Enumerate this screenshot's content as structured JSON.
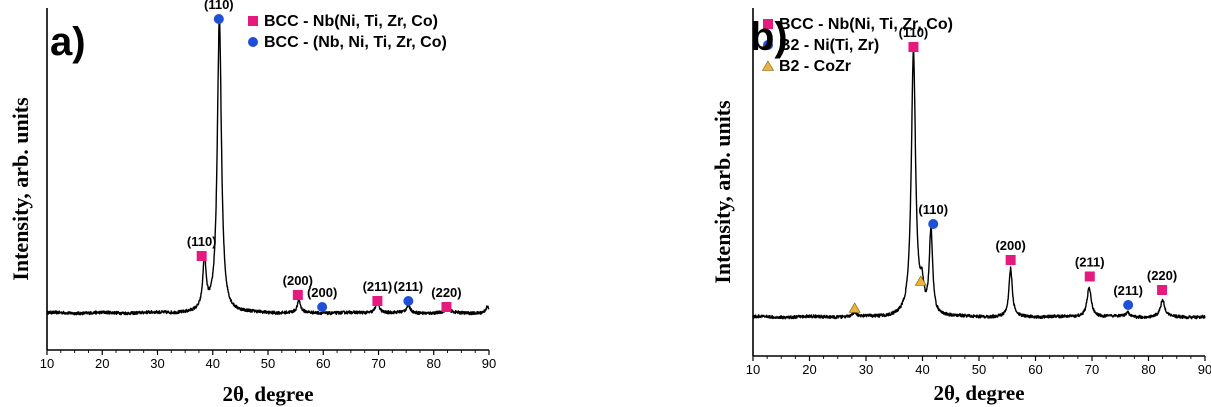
{
  "chart_data": [
    {
      "type": "line",
      "panel_label": "a)",
      "xlabel": "2θ, degree",
      "ylabel": "Intensity, arb. units",
      "title": "",
      "xlim": [
        10,
        90
      ],
      "xticks": [
        10,
        20,
        30,
        40,
        50,
        60,
        70,
        80,
        90
      ],
      "baseline": 2.5,
      "grid": false,
      "legend_position": "top-right",
      "legend": [
        {
          "marker": "square",
          "color": "#e6197f",
          "label": "BCC - Nb(Ni, Ti, Zr, Co)"
        },
        {
          "marker": "circle",
          "color": "#1f4fd6",
          "label": "BCC - (Nb, Ni, Ti, Zr, Co)"
        }
      ],
      "peaks": [
        {
          "x": 38.5,
          "h": 17,
          "w": 0.35
        },
        {
          "x": 41.2,
          "h": 98,
          "w": 0.45
        },
        {
          "x": 55.6,
          "h": 4,
          "w": 0.35
        },
        {
          "x": 69.8,
          "h": 4,
          "w": 0.4
        },
        {
          "x": 75.4,
          "h": 2.5,
          "w": 0.4
        },
        {
          "x": 82.5,
          "h": 2,
          "w": 0.4
        },
        {
          "x": 89.7,
          "h": 2,
          "w": 0.4
        }
      ],
      "annotations": [
        {
          "label": "(110)",
          "x": 41.1,
          "marker": "circle",
          "color": "#1f4fd6",
          "y": 100.5
        },
        {
          "label": "(110)",
          "x": 38.0,
          "marker": "square",
          "color": "#e6197f",
          "y": 21.5
        },
        {
          "label": "(200)",
          "x": 55.4,
          "marker": "square",
          "color": "#e6197f",
          "y": 8.5
        },
        {
          "label": "(200)",
          "x": 59.8,
          "marker": "circle",
          "color": "#1f4fd6",
          "y": 4.5
        },
        {
          "label": "(211)",
          "x": 69.8,
          "marker": "square",
          "color": "#e6197f",
          "y": 6.5
        },
        {
          "label": "(211)",
          "x": 75.4,
          "marker": "circle",
          "color": "#1f4fd6",
          "y": 6.5
        },
        {
          "label": "(220)",
          "x": 82.3,
          "marker": "square",
          "color": "#e6197f",
          "y": 4.5
        }
      ]
    },
    {
      "type": "line",
      "panel_label": "b)",
      "xlabel": "2θ, degree",
      "ylabel": "Intensity, arb. units",
      "title": "",
      "xlim": [
        10,
        90
      ],
      "xticks": [
        10,
        20,
        30,
        40,
        50,
        60,
        70,
        80,
        90
      ],
      "baseline": 3,
      "grid": false,
      "legend_position": "top-right",
      "legend": [
        {
          "marker": "square",
          "color": "#e6197f",
          "label": "BCC - Nb(Ni, Ti, Zr, Co)"
        },
        {
          "marker": "circle",
          "color": "#1f4fd6",
          "label": "B2 - Ni(Ti, Zr)"
        },
        {
          "marker": "triangle",
          "color": "#e8b53a",
          "label": "B2 - CoZr"
        }
      ],
      "peaks": [
        {
          "x": 28.0,
          "h": 1.5,
          "w": 0.3
        },
        {
          "x": 38.4,
          "h": 88,
          "w": 0.45
        },
        {
          "x": 39.9,
          "h": 8,
          "w": 0.35
        },
        {
          "x": 41.5,
          "h": 28,
          "w": 0.35
        },
        {
          "x": 55.6,
          "h": 16,
          "w": 0.35
        },
        {
          "x": 69.5,
          "h": 10,
          "w": 0.45
        },
        {
          "x": 76.3,
          "h": 1.5,
          "w": 0.4
        },
        {
          "x": 82.5,
          "h": 5.5,
          "w": 0.45
        }
      ],
      "annotations": [
        {
          "label": "(110)",
          "x": 38.4,
          "marker": "square",
          "color": "#e6197f",
          "y": 93
        },
        {
          "label": "(110)",
          "x": 41.9,
          "marker": "circle",
          "color": "#1f4fd6",
          "y": 34
        },
        {
          "label": "(200)",
          "x": 55.6,
          "marker": "square",
          "color": "#e6197f",
          "y": 22
        },
        {
          "label": "(211)",
          "x": 69.6,
          "marker": "square",
          "color": "#e6197f",
          "y": 16.5
        },
        {
          "label": "(211)",
          "x": 76.4,
          "marker": "circle",
          "color": "#1f4fd6",
          "y": 7
        },
        {
          "label": "(220)",
          "x": 82.4,
          "marker": "square",
          "color": "#e6197f",
          "y": 12
        },
        {
          "label": "",
          "x": 28.0,
          "marker": "triangle",
          "color": "#e8b53a",
          "y": 6
        },
        {
          "label": "",
          "x": 39.7,
          "marker": "triangle",
          "color": "#e8b53a",
          "y": 15
        }
      ]
    }
  ]
}
